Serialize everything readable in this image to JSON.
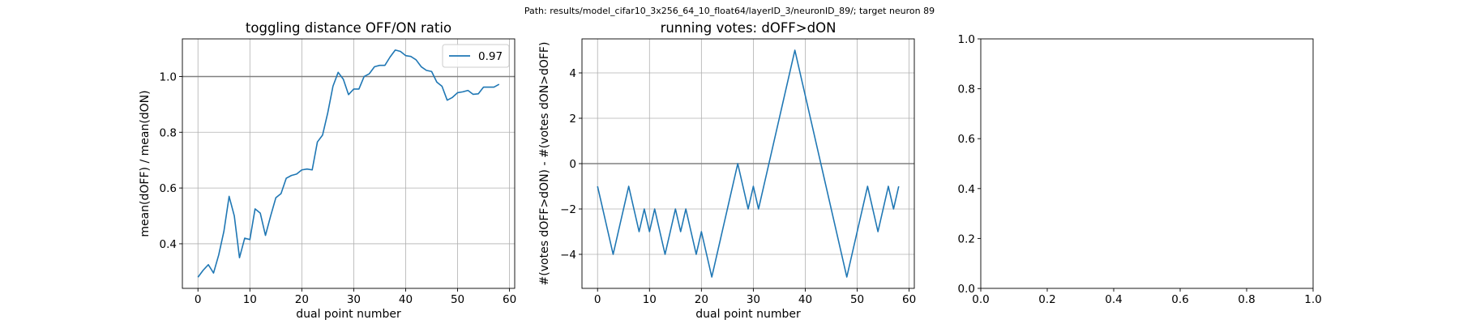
{
  "suptitle": "Path: results/model_cifar10_3x256_64_10_float64/layerID_3/neuronID_89/; target neuron 89",
  "chart_data": [
    {
      "type": "line",
      "title": "toggling distance OFF/ON ratio",
      "xlabel": "dual point number",
      "ylabel": "mean(dOFF) / mean(dON)",
      "xlim": [
        -3,
        61
      ],
      "ylim": [
        0.24,
        1.135
      ],
      "xticks": [
        0,
        10,
        20,
        30,
        40,
        50,
        60
      ],
      "xtick_labels": [
        "0",
        "10",
        "20",
        "30",
        "40",
        "50",
        "60"
      ],
      "yticks": [
        0.4,
        0.6,
        0.8,
        1.0
      ],
      "ytick_labels": [
        "0.4",
        "0.6",
        "0.8",
        "1.0"
      ],
      "grid": true,
      "reference_line": 1.0,
      "legend": {
        "placement": "upper right",
        "entries": [
          "0.97"
        ]
      },
      "series": [
        {
          "name": "0.97",
          "color": "#1f77b4",
          "x": [
            0,
            1,
            2,
            3,
            4,
            5,
            6,
            7,
            8,
            9,
            10,
            11,
            12,
            13,
            14,
            15,
            16,
            17,
            18,
            19,
            20,
            21,
            22,
            23,
            24,
            25,
            26,
            27,
            28,
            29,
            30,
            31,
            32,
            33,
            34,
            35,
            36,
            37,
            38,
            39,
            40,
            41,
            42,
            43,
            44,
            45,
            46,
            47,
            48,
            49,
            50,
            51,
            52,
            53,
            54,
            55,
            56,
            57,
            58
          ],
          "y": [
            0.28,
            0.305,
            0.325,
            0.295,
            0.36,
            0.445,
            0.57,
            0.5,
            0.35,
            0.42,
            0.415,
            0.525,
            0.51,
            0.43,
            0.5,
            0.565,
            0.58,
            0.635,
            0.645,
            0.65,
            0.665,
            0.668,
            0.665,
            0.765,
            0.79,
            0.87,
            0.965,
            1.015,
            0.99,
            0.935,
            0.955,
            0.955,
            1.0,
            1.01,
            1.035,
            1.04,
            1.04,
            1.07,
            1.095,
            1.09,
            1.075,
            1.072,
            1.06,
            1.035,
            1.022,
            1.018,
            0.98,
            0.965,
            0.915,
            0.925,
            0.942,
            0.945,
            0.95,
            0.936,
            0.938,
            0.962,
            0.962,
            0.962,
            0.972
          ]
        }
      ]
    },
    {
      "type": "line",
      "title": "running votes: dOFF>dON",
      "xlabel": "dual point number",
      "ylabel": "#(votes dOFF>dON) - #(votes dON>dOFF)",
      "xlim": [
        -3,
        61
      ],
      "ylim": [
        -5.5,
        5.5
      ],
      "xticks": [
        0,
        10,
        20,
        30,
        40,
        50,
        60
      ],
      "xtick_labels": [
        "0",
        "10",
        "20",
        "30",
        "40",
        "50",
        "60"
      ],
      "yticks": [
        -4,
        -2,
        0,
        2,
        4
      ],
      "ytick_labels": [
        "−4",
        "−2",
        "0",
        "2",
        "4"
      ],
      "grid": true,
      "reference_line": 0,
      "series": [
        {
          "color": "#1f77b4",
          "x": [
            0,
            1,
            2,
            3,
            4,
            5,
            6,
            7,
            8,
            9,
            10,
            11,
            12,
            13,
            14,
            15,
            16,
            17,
            18,
            19,
            20,
            21,
            22,
            23,
            24,
            25,
            26,
            27,
            28,
            29,
            30,
            31,
            32,
            33,
            34,
            35,
            36,
            37,
            38,
            39,
            40,
            41,
            42,
            43,
            44,
            45,
            46,
            47,
            48,
            49,
            50,
            51,
            52,
            53,
            54,
            55,
            56,
            57,
            58
          ],
          "y": [
            -1,
            -2,
            -3,
            -4,
            -3,
            -2,
            -1,
            -2,
            -3,
            -2,
            -3,
            -2,
            -3,
            -4,
            -3,
            -2,
            -3,
            -2,
            -3,
            -4,
            -3,
            -4,
            -5,
            -4,
            -3,
            -2,
            -1,
            0,
            -1,
            -2,
            -1,
            -2,
            -1,
            0,
            1,
            2,
            3,
            4,
            5,
            4,
            3,
            2,
            1,
            0,
            -1,
            -2,
            -3,
            -4,
            -5,
            -4,
            -3,
            -2,
            -1,
            -2,
            -3,
            -2,
            -1,
            -2,
            -1
          ]
        }
      ]
    },
    {
      "type": "line",
      "title": "",
      "xlabel": "",
      "ylabel": "",
      "xlim": [
        0,
        1
      ],
      "ylim": [
        0,
        1
      ],
      "xticks": [
        0,
        0.2,
        0.4,
        0.6,
        0.8,
        1.0
      ],
      "xtick_labels": [
        "0.0",
        "0.2",
        "0.4",
        "0.6",
        "0.8",
        "1.0"
      ],
      "yticks": [
        0,
        0.2,
        0.4,
        0.6,
        0.8,
        1.0
      ],
      "ytick_labels": [
        "0.0",
        "0.2",
        "0.4",
        "0.6",
        "0.8",
        "1.0"
      ],
      "grid": false,
      "series": []
    }
  ]
}
